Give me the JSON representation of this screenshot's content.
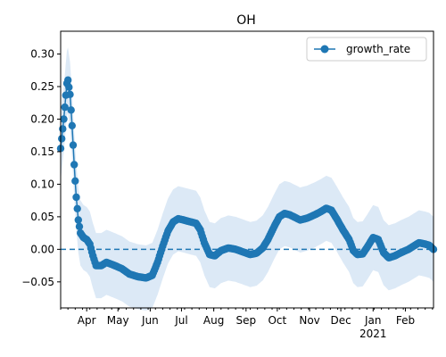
{
  "chart_data": {
    "type": "line",
    "title": "OH",
    "xlabel": "",
    "ylabel": "",
    "x_range": [
      "2020-03-07",
      "2021-02-28"
    ],
    "ylim": [
      -0.09,
      0.335
    ],
    "y_ticks": [
      {
        "value": -0.05,
        "label": "−0.05"
      },
      {
        "value": 0.0,
        "label": "0.00"
      },
      {
        "value": 0.05,
        "label": "0.05"
      },
      {
        "value": 0.1,
        "label": "0.10"
      },
      {
        "value": 0.15,
        "label": "0.15"
      },
      {
        "value": 0.2,
        "label": "0.20"
      },
      {
        "value": 0.25,
        "label": "0.25"
      },
      {
        "value": 0.3,
        "label": "0.30"
      }
    ],
    "x_ticks": [
      {
        "date": "2020-04-01",
        "label": "Apr",
        "sublabel": ""
      },
      {
        "date": "2020-05-01",
        "label": "May",
        "sublabel": ""
      },
      {
        "date": "2020-06-01",
        "label": "Jun",
        "sublabel": ""
      },
      {
        "date": "2020-07-01",
        "label": "Jul",
        "sublabel": ""
      },
      {
        "date": "2020-08-01",
        "label": "Aug",
        "sublabel": ""
      },
      {
        "date": "2020-09-01",
        "label": "Sep",
        "sublabel": ""
      },
      {
        "date": "2020-10-01",
        "label": "Oct",
        "sublabel": ""
      },
      {
        "date": "2020-11-01",
        "label": "Nov",
        "sublabel": ""
      },
      {
        "date": "2020-12-01",
        "label": "Dec",
        "sublabel": ""
      },
      {
        "date": "2021-01-01",
        "label": "Jan",
        "sublabel": "2021"
      },
      {
        "date": "2021-02-01",
        "label": "Feb",
        "sublabel": ""
      }
    ],
    "legend": {
      "placement": "top-right",
      "entries": [
        "growth_rate"
      ]
    },
    "reference_line": {
      "y": 0,
      "style": "dashed"
    },
    "colors": {
      "line": "#1f77b4",
      "band": "#dce9f6",
      "reference": "#1f77b4"
    },
    "series": [
      {
        "name": "growth_rate",
        "band_width": 0.05,
        "keypoints": [
          [
            "2020-03-07",
            0.155
          ],
          [
            "2020-03-10",
            0.2
          ],
          [
            "2020-03-13",
            0.255
          ],
          [
            "2020-03-14",
            0.26
          ],
          [
            "2020-03-16",
            0.238
          ],
          [
            "2020-03-18",
            0.19
          ],
          [
            "2020-03-20",
            0.13
          ],
          [
            "2020-03-22",
            0.08
          ],
          [
            "2020-03-24",
            0.045
          ],
          [
            "2020-03-26",
            0.025
          ],
          [
            "2020-03-29",
            0.018
          ],
          [
            "2020-04-01",
            0.015
          ],
          [
            "2020-04-04",
            0.008
          ],
          [
            "2020-04-07",
            -0.01
          ],
          [
            "2020-04-10",
            -0.025
          ],
          [
            "2020-04-15",
            -0.025
          ],
          [
            "2020-04-20",
            -0.02
          ],
          [
            "2020-04-28",
            -0.025
          ],
          [
            "2020-05-05",
            -0.03
          ],
          [
            "2020-05-12",
            -0.038
          ],
          [
            "2020-05-20",
            -0.042
          ],
          [
            "2020-05-28",
            -0.044
          ],
          [
            "2020-06-03",
            -0.04
          ],
          [
            "2020-06-08",
            -0.02
          ],
          [
            "2020-06-13",
            0.005
          ],
          [
            "2020-06-18",
            0.028
          ],
          [
            "2020-06-23",
            0.042
          ],
          [
            "2020-06-28",
            0.047
          ],
          [
            "2020-07-03",
            0.045
          ],
          [
            "2020-07-10",
            0.042
          ],
          [
            "2020-07-15",
            0.04
          ],
          [
            "2020-07-19",
            0.03
          ],
          [
            "2020-07-23",
            0.01
          ],
          [
            "2020-07-28",
            -0.008
          ],
          [
            "2020-08-02",
            -0.01
          ],
          [
            "2020-08-08",
            -0.002
          ],
          [
            "2020-08-15",
            0.002
          ],
          [
            "2020-08-22",
            0.0
          ],
          [
            "2020-08-29",
            -0.004
          ],
          [
            "2020-09-05",
            -0.008
          ],
          [
            "2020-09-11",
            -0.006
          ],
          [
            "2020-09-17",
            0.002
          ],
          [
            "2020-09-22",
            0.015
          ],
          [
            "2020-09-28",
            0.035
          ],
          [
            "2020-10-03",
            0.05
          ],
          [
            "2020-10-08",
            0.055
          ],
          [
            "2020-10-13",
            0.053
          ],
          [
            "2020-10-18",
            0.049
          ],
          [
            "2020-10-23",
            0.045
          ],
          [
            "2020-10-30",
            0.048
          ],
          [
            "2020-11-06",
            0.053
          ],
          [
            "2020-11-12",
            0.058
          ],
          [
            "2020-11-17",
            0.063
          ],
          [
            "2020-11-22",
            0.06
          ],
          [
            "2020-11-27",
            0.047
          ],
          [
            "2020-12-03",
            0.03
          ],
          [
            "2020-12-09",
            0.015
          ],
          [
            "2020-12-13",
            -0.002
          ],
          [
            "2020-12-17",
            -0.008
          ],
          [
            "2020-12-22",
            -0.007
          ],
          [
            "2020-12-27",
            0.005
          ],
          [
            "2021-01-01",
            0.018
          ],
          [
            "2021-01-06",
            0.015
          ],
          [
            "2021-01-11",
            -0.005
          ],
          [
            "2021-01-16",
            -0.013
          ],
          [
            "2021-01-22",
            -0.01
          ],
          [
            "2021-01-28",
            -0.005
          ],
          [
            "2021-02-04",
            0.0
          ],
          [
            "2021-02-09",
            0.005
          ],
          [
            "2021-02-14",
            0.01
          ],
          [
            "2021-02-20",
            0.008
          ],
          [
            "2021-02-24",
            0.006
          ],
          [
            "2021-02-28",
            0.0
          ]
        ]
      }
    ]
  }
}
